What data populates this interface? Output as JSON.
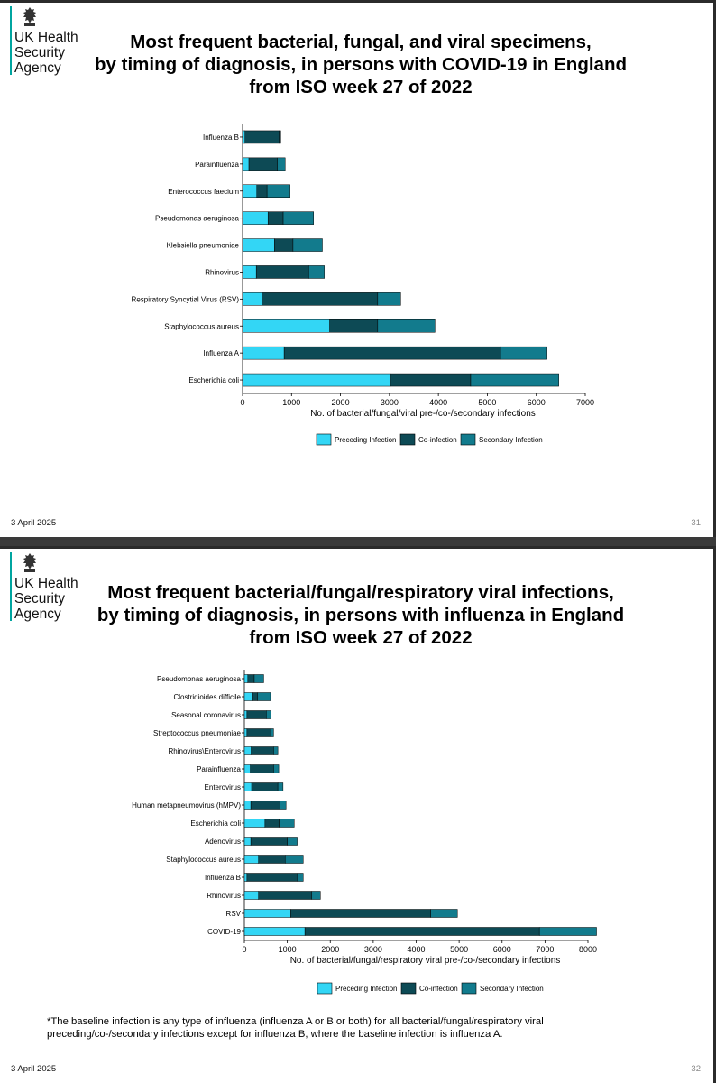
{
  "slides": [
    {
      "org_name": "UK Health\nSecurity\nAgency",
      "title": "Most frequent bacterial, fungal, and viral specimens,\nby timing of diagnosis, in persons with COVID-19 in England\nfrom ISO week 27 of 2022",
      "date": "3 April 2025",
      "page_number": "31"
    },
    {
      "org_name": "UK Health\nSecurity\nAgency",
      "title": "Most frequent bacterial/fungal/respiratory viral infections,\nby timing of diagnosis, in persons with influenza in England\nfrom ISO week 27 of 2022",
      "date": "3 April 2025",
      "page_number": "32",
      "footnote": "*The baseline infection is any type of influenza (influenza A or B or both) for all bacterial/fungal/respiratory viral preceding/co-/secondary infections except for influenza B, where the baseline infection is influenza A."
    }
  ],
  "colors": {
    "preceding": "#33d6f5",
    "coinfection": "#0d4a55",
    "secondary": "#127b8d"
  },
  "chart_data": [
    {
      "type": "bar",
      "orientation": "horizontal",
      "stacked": true,
      "xlabel": "No. of bacterial/fungal/viral pre-/co-/secondary infections",
      "xlim": [
        0,
        7000
      ],
      "xticks": [
        "0",
        "1000",
        "2000",
        "3000",
        "4000",
        "5000",
        "6000",
        "7000"
      ],
      "categories": [
        "Influenza B",
        "Parainfluenza",
        "Enterococcus faecium",
        "Pseudomonas aeruginosa",
        "Klebsiella pneumoniae",
        "Rhinovirus",
        "Respiratory Syncytial Virus (RSV)",
        "Staphylococcus aureus",
        "Influenza A",
        "Escherichia coli"
      ],
      "series": [
        {
          "name": "Preceding Infection",
          "values": [
            50,
            130,
            290,
            520,
            650,
            280,
            400,
            1780,
            850,
            3020
          ]
        },
        {
          "name": "Co-infection",
          "values": [
            700,
            580,
            210,
            310,
            380,
            1070,
            2360,
            980,
            4420,
            1640
          ]
        },
        {
          "name": "Secondary Infection",
          "values": [
            30,
            160,
            470,
            620,
            600,
            320,
            470,
            1170,
            950,
            1800
          ]
        }
      ]
    },
    {
      "type": "bar",
      "orientation": "horizontal",
      "stacked": true,
      "xlabel": "No. of bacterial/fungal/respiratory viral pre-/co-/secondary infections",
      "xlim": [
        0,
        8000
      ],
      "xticks": [
        "0",
        "1000",
        "2000",
        "3000",
        "4000",
        "5000",
        "6000",
        "7000",
        "8000"
      ],
      "categories": [
        "Pseudomonas aeruginosa",
        "Clostridioides difficile",
        "Seasonal coronavirus",
        "Streptococcus pneumoniae",
        "Rhinovirus\\Enterovirus",
        "Parainfluenza",
        "Enterovirus",
        "Human metapneumovirus (hMPV)",
        "Escherichia coli",
        "Adenovirus",
        "Staphylococcus aureus",
        "Influenza B",
        "Rhinovirus",
        "RSV",
        "COVID-19"
      ],
      "series": [
        {
          "name": "Preceding Infection",
          "values": [
            80,
            200,
            60,
            60,
            160,
            140,
            170,
            150,
            480,
            150,
            330,
            60,
            330,
            1080,
            1410
          ]
        },
        {
          "name": "Co-infection",
          "values": [
            150,
            110,
            450,
            560,
            520,
            540,
            610,
            680,
            330,
            850,
            620,
            1180,
            1240,
            3260,
            5460
          ]
        },
        {
          "name": "Secondary Infection",
          "values": [
            220,
            300,
            110,
            60,
            100,
            120,
            120,
            140,
            350,
            230,
            420,
            130,
            200,
            620,
            1330
          ]
        }
      ]
    }
  ]
}
